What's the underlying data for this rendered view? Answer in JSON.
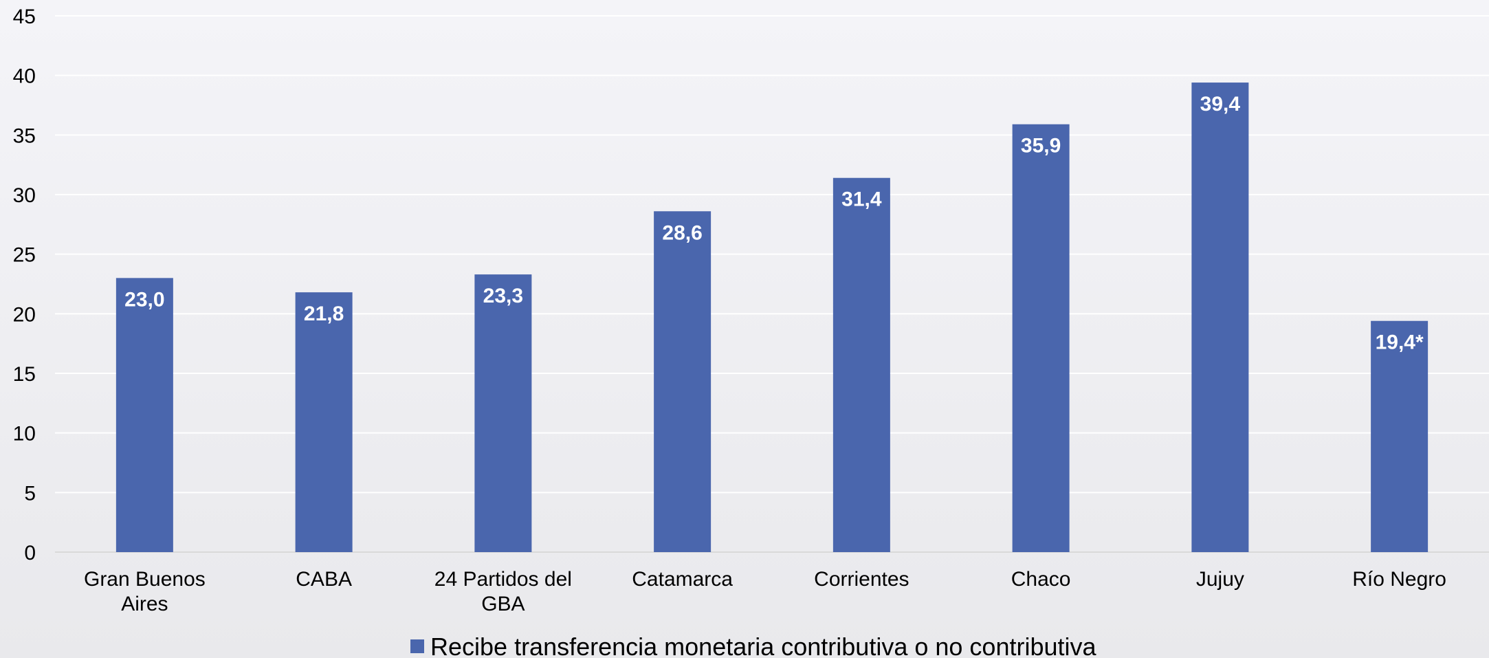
{
  "chart_data": {
    "type": "bar",
    "categories": [
      [
        "Gran Buenos",
        "Aires"
      ],
      [
        "CABA"
      ],
      [
        "24 Partidos del",
        "GBA"
      ],
      [
        "Catamarca"
      ],
      [
        "Corrientes"
      ],
      [
        "Chaco"
      ],
      [
        "Jujuy"
      ],
      [
        "Río Negro"
      ]
    ],
    "series": [
      {
        "name": "Recibe transferencia monetaria contributiva o no contributiva",
        "values": [
          23.0,
          21.8,
          23.3,
          28.6,
          31.4,
          35.9,
          39.4,
          19.4
        ],
        "data_labels": [
          "23,0",
          "21,8",
          "23,3",
          "28,6",
          "31,4",
          "35,9",
          "39,4",
          "19,4*"
        ]
      }
    ],
    "ylim": [
      0,
      45
    ],
    "yticks": [
      0,
      5,
      10,
      15,
      20,
      25,
      30,
      35,
      40,
      45
    ],
    "grid": true,
    "legend_position": "bottom",
    "title": "",
    "xlabel": "",
    "ylabel": ""
  },
  "colors": {
    "bar": "#4a66ad",
    "grid": "#ffffff",
    "axis": "#d9d9d9",
    "background_top": "#f4f4f8",
    "background_bottom": "#e9e9ec"
  }
}
